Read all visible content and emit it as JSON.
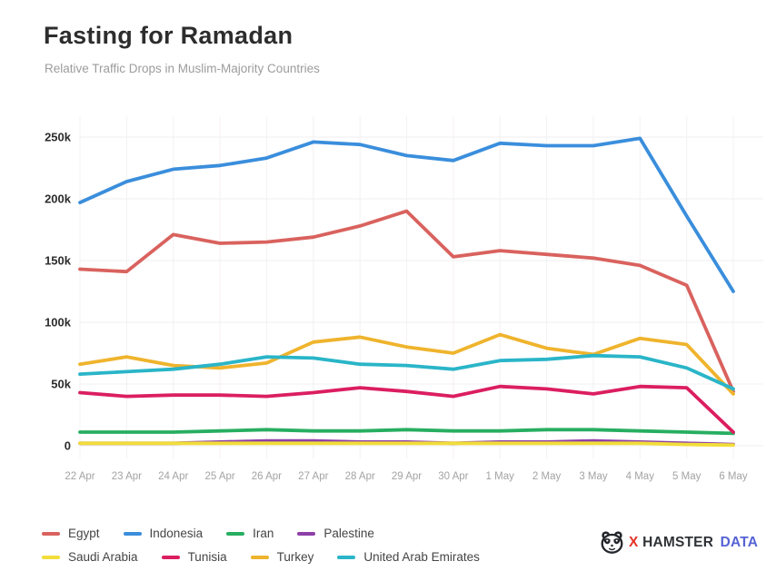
{
  "chart_data": {
    "type": "line",
    "title": "Fasting for Ramadan",
    "subtitle": "Relative Traffic Drops in Muslim-Majority Countries",
    "x": [
      "22 Apr",
      "23 Apr",
      "24 Apr",
      "25 Apr",
      "26 Apr",
      "27 Apr",
      "28 Apr",
      "29 Apr",
      "30 Apr",
      "1 May",
      "2 May",
      "3 May",
      "4 May",
      "5 May",
      "6 May"
    ],
    "y_tick_values": [
      0,
      50,
      100,
      150,
      200,
      250
    ],
    "y_tick_labels": [
      "0",
      "50k",
      "100k",
      "150k",
      "200k",
      "250k"
    ],
    "ylim": [
      0,
      250
    ],
    "unit": "thousands",
    "grid": true,
    "legend_position": "bottom",
    "series": [
      {
        "name": "Egypt",
        "color": "#d9625e",
        "values": [
          143,
          141,
          171,
          164,
          165,
          169,
          178,
          190,
          153,
          158,
          155,
          152,
          146,
          130,
          44
        ]
      },
      {
        "name": "Indonesia",
        "color": "#3a8edc",
        "values": [
          197,
          214,
          224,
          227,
          233,
          246,
          244,
          235,
          231,
          245,
          243,
          243,
          249,
          186,
          125
        ]
      },
      {
        "name": "Iran",
        "color": "#27ae60",
        "values": [
          11,
          11,
          11,
          12,
          13,
          12,
          12,
          13,
          12,
          12,
          13,
          13,
          12,
          11,
          10
        ]
      },
      {
        "name": "Palestine",
        "color": "#8e3fa8",
        "values": [
          2,
          2,
          2,
          3,
          4,
          4,
          3,
          3,
          2,
          3,
          3,
          4,
          3,
          2,
          1
        ]
      },
      {
        "name": "Saudi Arabia",
        "color": "#f2dd3a",
        "values": [
          2,
          2,
          2,
          2,
          2,
          2,
          2,
          2,
          2,
          2,
          2,
          2,
          2,
          1,
          0.5
        ]
      },
      {
        "name": "Tunisia",
        "color": "#db1e60",
        "values": [
          43,
          40,
          41,
          41,
          40,
          43,
          47,
          44,
          40,
          48,
          46,
          42,
          48,
          47,
          11
        ]
      },
      {
        "name": "Turkey",
        "color": "#efb42d",
        "values": [
          66,
          72,
          65,
          63,
          67,
          84,
          88,
          80,
          75,
          90,
          79,
          74,
          87,
          82,
          42
        ]
      },
      {
        "name": "United Arab Emirates",
        "color": "#2ab5c8",
        "values": [
          58,
          60,
          62,
          66,
          72,
          71,
          66,
          65,
          62,
          69,
          70,
          73,
          72,
          63,
          46
        ]
      }
    ]
  },
  "branding": {
    "parts": [
      "X",
      "HAMSTER",
      "DATA"
    ],
    "x_color": "#e63228",
    "name_color": "#2f3337",
    "data_color": "#5663d4"
  },
  "style": {
    "grid_h_color": "#efefef",
    "grid_v_color": "#f6f0f1",
    "y_label_color": "#2d2d2d",
    "x_label_color": "#a3a3a3"
  }
}
